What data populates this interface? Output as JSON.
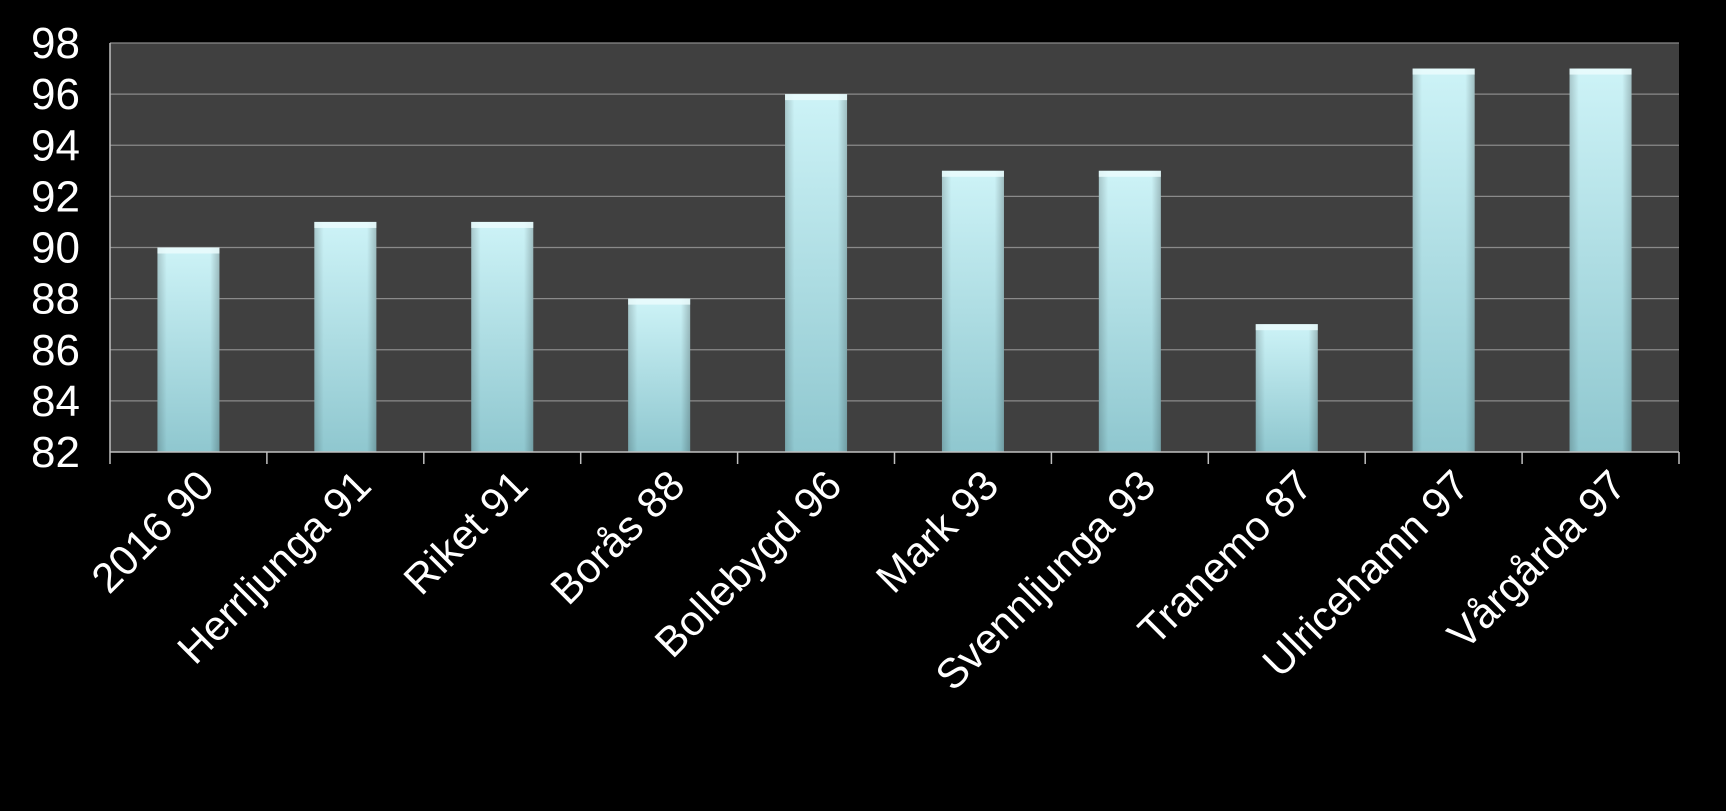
{
  "chart_data": {
    "type": "bar",
    "categories": [
      "2016 90",
      "Herrljunga 91",
      "Riket 91",
      "Borås 88",
      "Bollebygd 96",
      "Mark 93",
      "Svennljunga 93",
      "Tranemo 87",
      "Ulricehamn 97",
      "Vårgårda 97"
    ],
    "values": [
      90,
      91,
      91,
      88,
      96,
      93,
      93,
      87,
      97,
      97
    ],
    "ylim": [
      82,
      98
    ],
    "yticks": [
      82,
      84,
      86,
      88,
      90,
      92,
      94,
      96,
      98
    ],
    "grid": true,
    "legend": "none",
    "colors": {
      "background": "#000000",
      "plot_area": "#404040",
      "gridline": "#8a8a8a",
      "bar_top": "#cdf3f7",
      "bar_bottom": "#8fc7cf",
      "text": "#ffffff"
    }
  }
}
